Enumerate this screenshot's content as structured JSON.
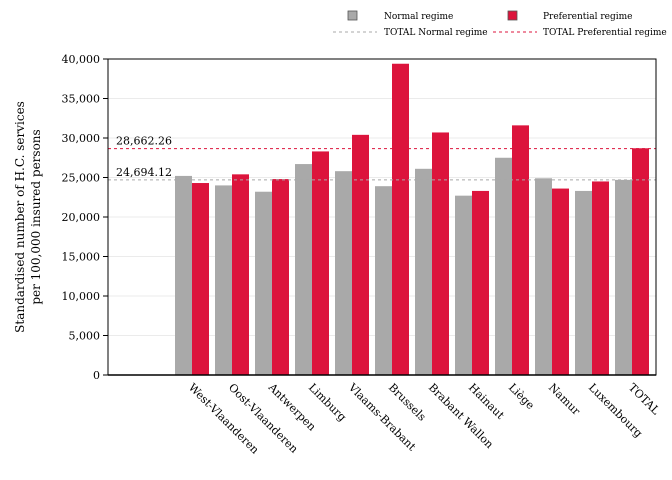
{
  "chart_data": {
    "type": "bar",
    "ylabel": "Standardised number of H.C. services per 100,000 insured persons",
    "ylabel_lines": [
      "Standardised number of H.C. services",
      "per 100,000 insured persons"
    ],
    "xlabel": "",
    "ylim": [
      0,
      40000
    ],
    "y_ticks": [
      0,
      5000,
      10000,
      15000,
      20000,
      25000,
      30000,
      35000,
      40000
    ],
    "y_tick_labels": [
      "0",
      "5,000",
      "10,000",
      "15,000",
      "20,000",
      "25,000",
      "30,000",
      "35,000",
      "40,000"
    ],
    "grid": true,
    "legend_position": "top",
    "categories": [
      "West-Vlaanderen",
      "Oost-Vlaanderen",
      "Antwerpen",
      "Limburg",
      "Vlaams-Brabant",
      "Brussels",
      "Brabant Wallon",
      "Hainaut",
      "Liège",
      "Namur",
      "Luxembourg",
      "TOTAL"
    ],
    "series": [
      {
        "name": "Normal regime",
        "color": "#a9a9a9",
        "values": [
          25200,
          24000,
          23200,
          26700,
          25800,
          23900,
          26100,
          22700,
          27500,
          24900,
          23300,
          24700
        ]
      },
      {
        "name": "Preferential regime",
        "color": "#dc143c",
        "values": [
          24300,
          25400,
          24800,
          28300,
          30400,
          39400,
          30700,
          23300,
          31600,
          23600,
          24500,
          28700
        ]
      }
    ],
    "reference_lines": [
      {
        "name": "TOTAL Normal regime",
        "value": 24694.12,
        "label": "24,694.12",
        "color": "#a9a9a9"
      },
      {
        "name": "TOTAL Preferential regime",
        "value": 28662.26,
        "label": "28,662.26",
        "color": "#dc143c"
      }
    ]
  }
}
